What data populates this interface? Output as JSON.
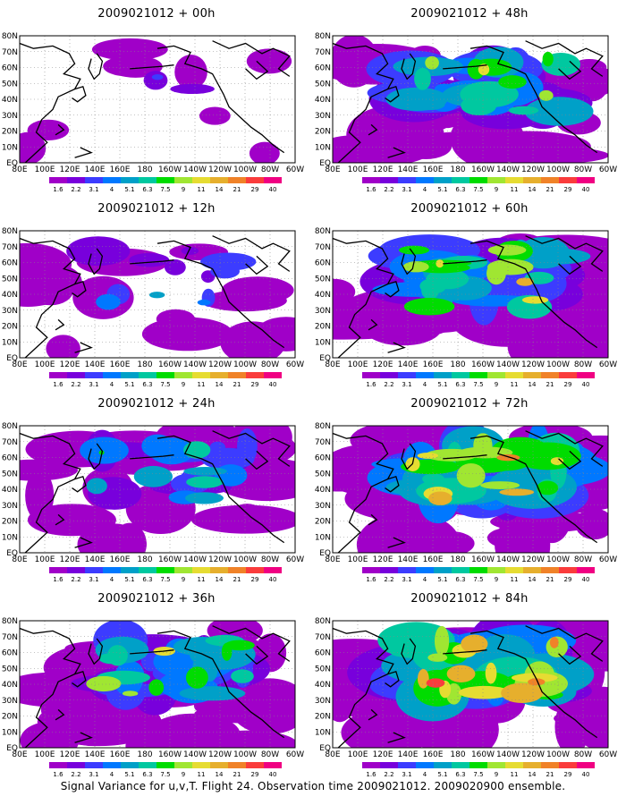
{
  "caption": "Signal Variance for u,v,T. Flight 24. Observation time 2009021012. 2009020900 ensemble.",
  "x_ticks": [
    "80E",
    "100E",
    "120E",
    "140E",
    "160E",
    "180",
    "160W",
    "140W",
    "120W",
    "100W",
    "80W",
    "60W"
  ],
  "y_ticks": [
    "EQ",
    "10N",
    "20N",
    "30N",
    "40N",
    "50N",
    "60N",
    "70N",
    "80N"
  ],
  "colorbar": {
    "levels": [
      "1.6",
      "2.2",
      "3.1",
      "4",
      "5.1",
      "6.3",
      "7.5",
      "9",
      "11",
      "14",
      "21",
      "29",
      "40"
    ],
    "colors": [
      "#a000c8",
      "#7800dc",
      "#3c3cff",
      "#0078ff",
      "#00a0c8",
      "#00c8a0",
      "#00dc00",
      "#a0e632",
      "#e6dc32",
      "#e6af2d",
      "#f08228",
      "#fa3c3c",
      "#f00082"
    ]
  },
  "chart_data": [
    {
      "type": "heatmap",
      "title": "2009021012 + 00h",
      "intensity": 0.05
    },
    {
      "type": "heatmap",
      "title": "2009021012 + 12h",
      "intensity": 0.25
    },
    {
      "type": "heatmap",
      "title": "2009021012 + 24h",
      "intensity": 0.45
    },
    {
      "type": "heatmap",
      "title": "2009021012 + 36h",
      "intensity": 0.6
    },
    {
      "type": "heatmap",
      "title": "2009021012 + 48h",
      "intensity": 0.65
    },
    {
      "type": "heatmap",
      "title": "2009021012 + 60h",
      "intensity": 0.75
    },
    {
      "type": "heatmap",
      "title": "2009021012 + 72h",
      "intensity": 0.85
    },
    {
      "type": "heatmap",
      "title": "2009021012 + 84h",
      "intensity": 0.95
    }
  ]
}
